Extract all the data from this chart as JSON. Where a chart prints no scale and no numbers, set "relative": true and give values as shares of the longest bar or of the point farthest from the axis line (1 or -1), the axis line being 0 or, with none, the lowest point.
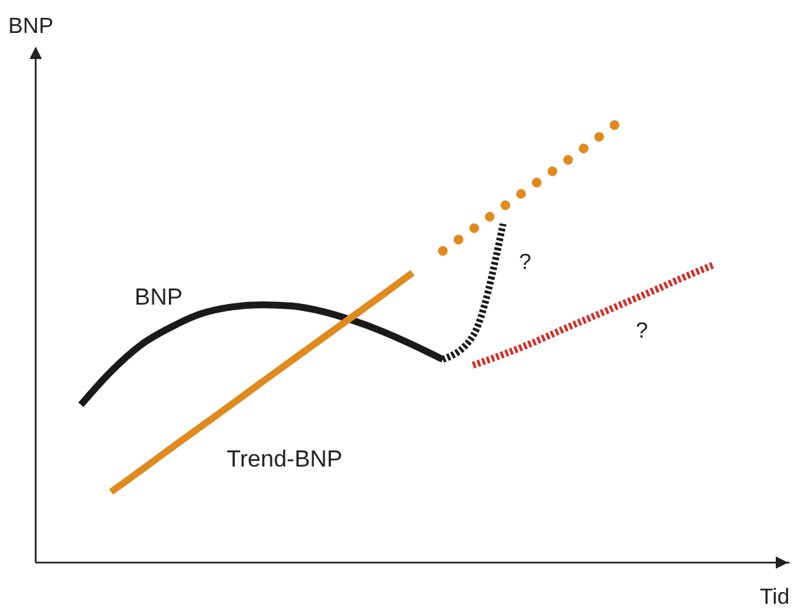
{
  "chart_data": {
    "type": "line",
    "relative": true,
    "xlabel": "Tid",
    "ylabel": "BNP",
    "categories": [
      null,
      null,
      null,
      null,
      null,
      null,
      null,
      null,
      null,
      null,
      null,
      null,
      null,
      null,
      null,
      null,
      null,
      null,
      null,
      null,
      null,
      null,
      null,
      null,
      null
    ],
    "series": [
      {
        "name": "BNP",
        "color": "#1a1a1a",
        "line_style": "solid",
        "values": [
          null,
          0.355,
          0.43,
          0.49,
          0.53,
          0.56,
          0.575,
          0.58,
          0.577,
          0.565,
          0.545,
          0.52,
          0.49,
          0.457,
          null,
          null,
          null,
          null,
          null,
          null,
          null,
          null,
          null,
          null,
          null
        ]
      },
      {
        "name": "Trend-BNP",
        "color": "#e08a1e",
        "line_style": "solid",
        "values": [
          null,
          null,
          0.159,
          0.208,
          0.258,
          0.307,
          0.356,
          0.406,
          0.455,
          0.504,
          0.553,
          0.602,
          0.652,
          null,
          null,
          null,
          null,
          null,
          null,
          null,
          null,
          null,
          null,
          null,
          null
        ]
      },
      {
        "color": "#e08a1e",
        "line_style": "dotted",
        "values": [
          null,
          null,
          null,
          null,
          null,
          null,
          null,
          null,
          null,
          null,
          null,
          null,
          null,
          0.701,
          0.75,
          0.8,
          0.849,
          0.898,
          0.948,
          1,
          null,
          null,
          null,
          null,
          null
        ]
      },
      {
        "color": "#1a1a1a",
        "line_style": "dashed",
        "values": [
          null,
          null,
          null,
          null,
          null,
          null,
          null,
          null,
          null,
          null,
          null,
          null,
          null,
          0.457,
          0.51,
          0.762,
          null,
          null,
          null,
          null,
          null,
          null,
          null,
          null,
          null
        ]
      },
      {
        "color": "#d0302a",
        "line_style": "dashed",
        "values": [
          null,
          null,
          null,
          null,
          null,
          null,
          null,
          null,
          null,
          null,
          null,
          null,
          null,
          null,
          0.444,
          0.468,
          0.495,
          0.525,
          0.554,
          0.583,
          0.612,
          0.642,
          0.67,
          null,
          null
        ]
      }
    ],
    "annotations": [
      "?",
      "?"
    ]
  }
}
